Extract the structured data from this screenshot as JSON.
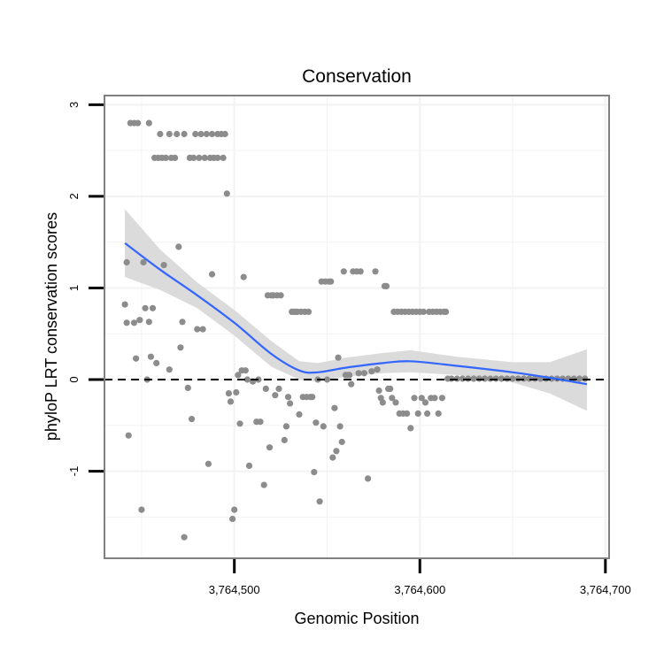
{
  "chart_data": {
    "type": "scatter",
    "title": "Conservation",
    "xlabel": "Genomic Position",
    "ylabel": "phyloP LRT conservation scores",
    "xlim": [
      3764430,
      3764702
    ],
    "ylim": [
      -1.95,
      3.1
    ],
    "x_ticks": [
      {
        "value": 3764500,
        "label": "3,764,500"
      },
      {
        "value": 3764600,
        "label": "3,764,600"
      },
      {
        "value": 3764700,
        "label": "3,764,700"
      }
    ],
    "y_ticks": [
      {
        "value": -1,
        "label": "-1"
      },
      {
        "value": 0,
        "label": "0"
      },
      {
        "value": 1,
        "label": "1"
      },
      {
        "value": 2,
        "label": "2"
      },
      {
        "value": 3,
        "label": "3"
      }
    ],
    "y_minor_grid": [
      -1.5,
      -0.5,
      0.5,
      1.5,
      2.5
    ],
    "x_minor_grid": [
      3764450,
      3764550,
      3764650
    ],
    "reference_line": {
      "y": 0,
      "style": "dashed"
    },
    "points": [
      [
        3764441,
        0.82
      ],
      [
        3764442,
        0.62
      ],
      [
        3764442,
        1.28
      ],
      [
        3764443,
        -0.61
      ],
      [
        3764444,
        2.8
      ],
      [
        3764446,
        0.62
      ],
      [
        3764446,
        2.8
      ],
      [
        3764447,
        0.23
      ],
      [
        3764448,
        2.8
      ],
      [
        3764449,
        0.65
      ],
      [
        3764450,
        -1.42
      ],
      [
        3764451,
        1.28
      ],
      [
        3764452,
        0.78
      ],
      [
        3764453,
        0.0
      ],
      [
        3764454,
        2.8
      ],
      [
        3764454,
        0.63
      ],
      [
        3764455,
        0.25
      ],
      [
        3764456,
        0.78
      ],
      [
        3764457,
        2.42
      ],
      [
        3764458,
        0.18
      ],
      [
        3764459,
        2.42
      ],
      [
        3764460,
        2.68
      ],
      [
        3764461,
        2.42
      ],
      [
        3764462,
        1.25
      ],
      [
        3764463,
        2.42
      ],
      [
        3764465,
        2.68
      ],
      [
        3764465,
        0.11
      ],
      [
        3764466,
        2.42
      ],
      [
        3764468,
        2.42
      ],
      [
        3764469,
        2.68
      ],
      [
        3764470,
        1.45
      ],
      [
        3764471,
        0.35
      ],
      [
        3764472,
        0.63
      ],
      [
        3764473,
        2.68
      ],
      [
        3764473,
        -1.72
      ],
      [
        3764475,
        -0.09
      ],
      [
        3764476,
        2.42
      ],
      [
        3764477,
        -0.43
      ],
      [
        3764478,
        2.42
      ],
      [
        3764479,
        2.68
      ],
      [
        3764480,
        0.55
      ],
      [
        3764481,
        2.42
      ],
      [
        3764482,
        2.68
      ],
      [
        3764483,
        0.55
      ],
      [
        3764484,
        2.42
      ],
      [
        3764485,
        2.68
      ],
      [
        3764486,
        -0.92
      ],
      [
        3764487,
        2.42
      ],
      [
        3764488,
        1.15
      ],
      [
        3764488,
        2.68
      ],
      [
        3764489,
        2.42
      ],
      [
        3764491,
        2.68
      ],
      [
        3764491,
        2.42
      ],
      [
        3764493,
        2.68
      ],
      [
        3764494,
        2.42
      ],
      [
        3764495,
        2.68
      ],
      [
        3764496,
        2.03
      ],
      [
        3764497,
        -0.15
      ],
      [
        3764498,
        -0.24
      ],
      [
        3764499,
        -1.52
      ],
      [
        3764500,
        -1.42
      ],
      [
        3764501,
        -0.14
      ],
      [
        3764502,
        0.05
      ],
      [
        3764503,
        -0.48
      ],
      [
        3764504,
        0.1
      ],
      [
        3764505,
        1.12
      ],
      [
        3764506,
        0.1
      ],
      [
        3764507,
        0.0
      ],
      [
        3764508,
        -0.94
      ],
      [
        3764510,
        -0.02
      ],
      [
        3764512,
        -0.46
      ],
      [
        3764513,
        0.0
      ],
      [
        3764514,
        -0.46
      ],
      [
        3764516,
        -1.15
      ],
      [
        3764517,
        -0.1
      ],
      [
        3764518,
        0.92
      ],
      [
        3764519,
        -0.74
      ],
      [
        3764520,
        0.92
      ],
      [
        3764521,
        0.92
      ],
      [
        3764522,
        -0.17
      ],
      [
        3764523,
        0.92
      ],
      [
        3764524,
        -0.1
      ],
      [
        3764525,
        0.92
      ],
      [
        3764527,
        -0.66
      ],
      [
        3764528,
        -0.51
      ],
      [
        3764529,
        -0.19
      ],
      [
        3764530,
        -0.26
      ],
      [
        3764531,
        0.74
      ],
      [
        3764532,
        0.74
      ],
      [
        3764533,
        0.74
      ],
      [
        3764534,
        0.74
      ],
      [
        3764535,
        -0.38
      ],
      [
        3764536,
        0.74
      ],
      [
        3764537,
        -0.19
      ],
      [
        3764538,
        0.74
      ],
      [
        3764539,
        -0.19
      ],
      [
        3764540,
        0.74
      ],
      [
        3764541,
        -0.19
      ],
      [
        3764542,
        -0.19
      ],
      [
        3764543,
        -1.01
      ],
      [
        3764544,
        -0.47
      ],
      [
        3764545,
        0.0
      ],
      [
        3764546,
        -1.33
      ],
      [
        3764547,
        1.07
      ],
      [
        3764548,
        -0.51
      ],
      [
        3764549,
        1.07
      ],
      [
        3764550,
        0.0
      ],
      [
        3764551,
        1.07
      ],
      [
        3764552,
        1.07
      ],
      [
        3764553,
        -0.85
      ],
      [
        3764554,
        -0.31
      ],
      [
        3764555,
        -0.78
      ],
      [
        3764556,
        0.24
      ],
      [
        3764557,
        -0.51
      ],
      [
        3764558,
        -0.68
      ],
      [
        3764559,
        1.18
      ],
      [
        3764560,
        0.05
      ],
      [
        3764561,
        0.05
      ],
      [
        3764562,
        0.05
      ],
      [
        3764563,
        -0.05
      ],
      [
        3764564,
        1.18
      ],
      [
        3764566,
        1.18
      ],
      [
        3764567,
        0.07
      ],
      [
        3764568,
        1.18
      ],
      [
        3764570,
        0.07
      ],
      [
        3764572,
        -1.08
      ],
      [
        3764574,
        0.09
      ],
      [
        3764576,
        1.18
      ],
      [
        3764577,
        0.11
      ],
      [
        3764578,
        -0.12
      ],
      [
        3764579,
        -0.2
      ],
      [
        3764580,
        -0.25
      ],
      [
        3764581,
        1.02
      ],
      [
        3764582,
        1.02
      ],
      [
        3764583,
        -0.1
      ],
      [
        3764584,
        -0.1
      ],
      [
        3764585,
        -0.2
      ],
      [
        3764586,
        0.74
      ],
      [
        3764587,
        -0.25
      ],
      [
        3764588,
        0.74
      ],
      [
        3764589,
        -0.37
      ],
      [
        3764590,
        0.74
      ],
      [
        3764591,
        -0.37
      ],
      [
        3764592,
        0.74
      ],
      [
        3764593,
        -0.37
      ],
      [
        3764594,
        0.74
      ],
      [
        3764595,
        -0.53
      ],
      [
        3764596,
        0.74
      ],
      [
        3764597,
        -0.2
      ],
      [
        3764598,
        0.74
      ],
      [
        3764599,
        -0.37
      ],
      [
        3764600,
        0.74
      ],
      [
        3764601,
        -0.2
      ],
      [
        3764602,
        0.74
      ],
      [
        3764603,
        -0.25
      ],
      [
        3764604,
        -0.37
      ],
      [
        3764605,
        0.74
      ],
      [
        3764606,
        -0.2
      ],
      [
        3764607,
        0.74
      ],
      [
        3764608,
        -0.2
      ],
      [
        3764609,
        0.74
      ],
      [
        3764610,
        -0.37
      ],
      [
        3764611,
        0.74
      ],
      [
        3764612,
        -0.2
      ],
      [
        3764613,
        0.74
      ],
      [
        3764614,
        0.74
      ],
      [
        3764615,
        0.01
      ],
      [
        3764617,
        0.01
      ],
      [
        3764620,
        0.01
      ],
      [
        3764623,
        0.01
      ],
      [
        3764626,
        0.01
      ],
      [
        3764629,
        0.01
      ],
      [
        3764632,
        0.01
      ],
      [
        3764635,
        0.01
      ],
      [
        3764638,
        0.01
      ],
      [
        3764641,
        0.01
      ],
      [
        3764644,
        0.01
      ],
      [
        3764647,
        0.01
      ],
      [
        3764650,
        0.01
      ],
      [
        3764653,
        0.01
      ],
      [
        3764656,
        0.01
      ],
      [
        3764659,
        0.01
      ],
      [
        3764662,
        0.01
      ],
      [
        3764665,
        0.01
      ],
      [
        3764668,
        0.01
      ],
      [
        3764671,
        0.01
      ],
      [
        3764674,
        0.01
      ],
      [
        3764677,
        0.01
      ],
      [
        3764680,
        0.01
      ],
      [
        3764683,
        0.01
      ],
      [
        3764686,
        0.01
      ],
      [
        3764689,
        0.01
      ]
    ],
    "smooth": {
      "method": "loess",
      "x": [
        3764441,
        3764460,
        3764480,
        3764500,
        3764520,
        3764535,
        3764545,
        3764560,
        3764580,
        3764595,
        3764620,
        3764650,
        3764670,
        3764690
      ],
      "y": [
        1.49,
        1.2,
        0.92,
        0.62,
        0.28,
        0.1,
        0.08,
        0.13,
        0.18,
        0.2,
        0.15,
        0.08,
        0.02,
        -0.05
      ],
      "lower": [
        1.12,
        0.98,
        0.78,
        0.48,
        0.14,
        0.0,
        -0.02,
        0.03,
        0.07,
        0.08,
        0.05,
        -0.03,
        -0.15,
        -0.34
      ],
      "upper": [
        1.86,
        1.42,
        1.06,
        0.76,
        0.42,
        0.2,
        0.18,
        0.24,
        0.29,
        0.32,
        0.25,
        0.19,
        0.19,
        0.33
      ]
    },
    "colors": {
      "points": "#8c8c8c",
      "smooth_line": "#3366ff",
      "ribbon": "#d9d9d9",
      "panel_border": "#808080",
      "grid": "#f2f2f2"
    }
  }
}
